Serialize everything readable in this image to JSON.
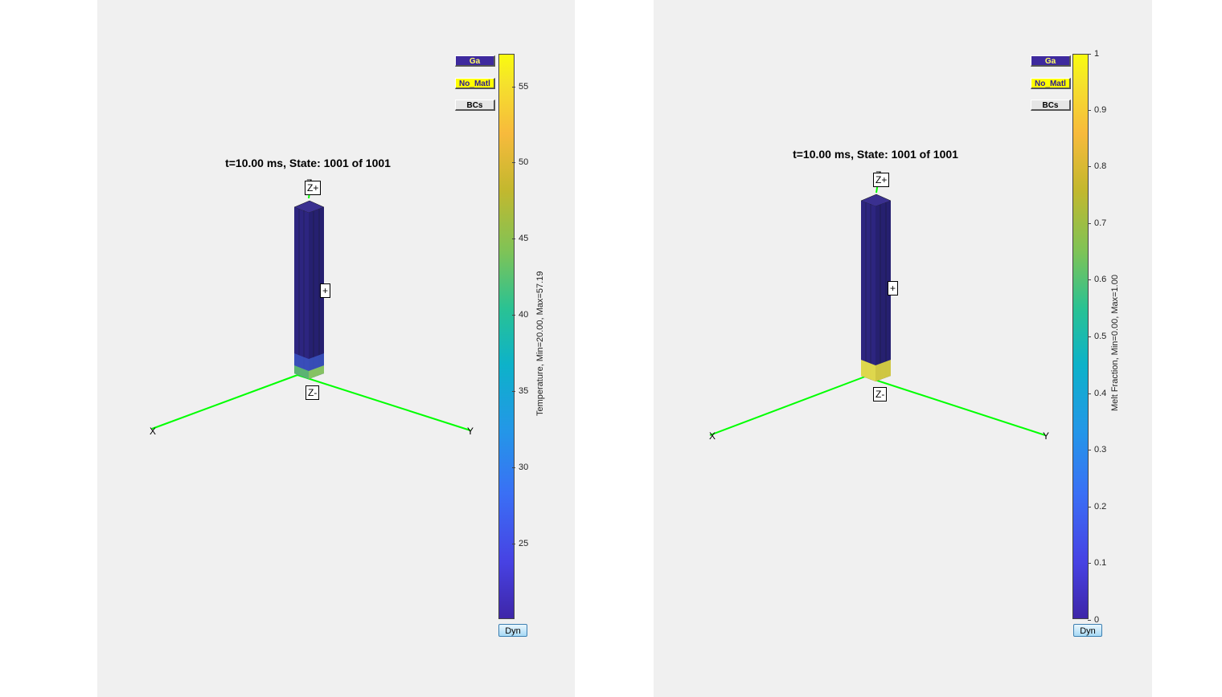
{
  "panels": [
    {
      "title": "t=10.00 ms, State: 1001 of 1001",
      "buttons": {
        "ga": "Ga",
        "no_matl": "No_Matl",
        "bcs": "BCs",
        "dyn": "Dyn"
      },
      "colorbar": {
        "label": "Temperature, Min=20.00, Max=57.19",
        "ticks": [
          "55",
          "50",
          "45",
          "40",
          "35",
          "30",
          "25"
        ],
        "min": 20.0,
        "max": 57.19
      },
      "axes": {
        "x": "X",
        "y": "Y",
        "z": "Z"
      },
      "bc_labels": {
        "z_plus": "Z+",
        "z_minus": "Z-",
        "side": "+"
      }
    },
    {
      "title": "t=10.00 ms, State: 1001 of 1001",
      "buttons": {
        "ga": "Ga",
        "no_matl": "No_Matl",
        "bcs": "BCs",
        "dyn": "Dyn"
      },
      "colorbar": {
        "label": "Melt Fraction, Min=0.00, Max=1.00",
        "ticks": [
          "1",
          "0.9",
          "0.8",
          "0.7",
          "0.6",
          "0.5",
          "0.4",
          "0.3",
          "0.2",
          "0.1",
          "0"
        ],
        "min": 0.0,
        "max": 1.0
      },
      "axes": {
        "x": "X",
        "y": "Y",
        "z": "Z"
      },
      "bc_labels": {
        "z_plus": "Z+",
        "z_minus": "Z-",
        "side": "+"
      }
    }
  ],
  "colors": {
    "axis_lines": "#00ff00",
    "column_fill": "#2d2580",
    "hot_bottom_left": "#5fbf6a",
    "melt_bottom_right": "#e8e04a"
  }
}
